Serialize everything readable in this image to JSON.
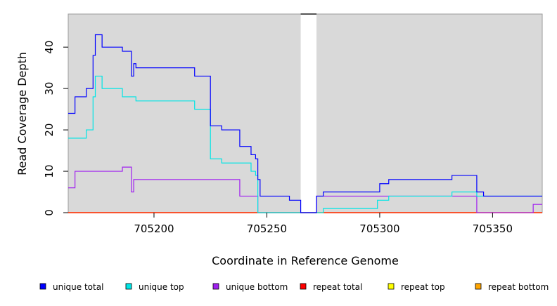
{
  "chart_data": {
    "type": "line",
    "title": "",
    "xlabel": "Coordinate in Reference Genome",
    "ylabel": "Read Coverage Depth",
    "xlim": [
      705162,
      705372
    ],
    "ylim": [
      0,
      48
    ],
    "x_ticks": [
      705200,
      705250,
      705300,
      705350
    ],
    "y_ticks": [
      0,
      10,
      20,
      30,
      40
    ],
    "grid": false,
    "background": "#d9d9d9",
    "gap": {
      "from": 705265,
      "to": 705272,
      "color": "#ffffff"
    },
    "legend_position": "bottom",
    "series": [
      {
        "name": "unique total",
        "color": "#0000ff",
        "points": [
          [
            705162,
            24
          ],
          [
            705165,
            24
          ],
          [
            705165,
            28
          ],
          [
            705170,
            28
          ],
          [
            705170,
            30
          ],
          [
            705173,
            30
          ],
          [
            705173,
            38
          ],
          [
            705174,
            38
          ],
          [
            705174,
            43
          ],
          [
            705177,
            43
          ],
          [
            705177,
            40
          ],
          [
            705186,
            40
          ],
          [
            705186,
            39
          ],
          [
            705190,
            39
          ],
          [
            705190,
            33
          ],
          [
            705191,
            33
          ],
          [
            705191,
            36
          ],
          [
            705192,
            36
          ],
          [
            705192,
            35
          ],
          [
            705218,
            35
          ],
          [
            705218,
            33
          ],
          [
            705225,
            33
          ],
          [
            705225,
            21
          ],
          [
            705230,
            21
          ],
          [
            705230,
            20
          ],
          [
            705238,
            20
          ],
          [
            705238,
            16
          ],
          [
            705243,
            16
          ],
          [
            705243,
            14
          ],
          [
            705245,
            14
          ],
          [
            705245,
            13
          ],
          [
            705246,
            13
          ],
          [
            705246,
            8
          ],
          [
            705247,
            8
          ],
          [
            705247,
            4
          ],
          [
            705260,
            4
          ],
          [
            705260,
            3
          ],
          [
            705265,
            3
          ],
          [
            705265,
            0
          ],
          [
            705272,
            0
          ],
          [
            705272,
            4
          ],
          [
            705275,
            4
          ],
          [
            705275,
            5
          ],
          [
            705300,
            5
          ],
          [
            705300,
            7
          ],
          [
            705304,
            7
          ],
          [
            705304,
            8
          ],
          [
            705332,
            8
          ],
          [
            705332,
            9
          ],
          [
            705343,
            9
          ],
          [
            705343,
            5
          ],
          [
            705346,
            5
          ],
          [
            705346,
            4
          ],
          [
            705372,
            4
          ]
        ]
      },
      {
        "name": "unique top",
        "color": "#00e5e5",
        "points": [
          [
            705162,
            18
          ],
          [
            705170,
            18
          ],
          [
            705170,
            20
          ],
          [
            705173,
            20
          ],
          [
            705173,
            28
          ],
          [
            705174,
            28
          ],
          [
            705174,
            33
          ],
          [
            705177,
            33
          ],
          [
            705177,
            30
          ],
          [
            705186,
            30
          ],
          [
            705186,
            28
          ],
          [
            705192,
            28
          ],
          [
            705192,
            27
          ],
          [
            705218,
            27
          ],
          [
            705218,
            25
          ],
          [
            705225,
            25
          ],
          [
            705225,
            13
          ],
          [
            705230,
            13
          ],
          [
            705230,
            12
          ],
          [
            705243,
            12
          ],
          [
            705243,
            10
          ],
          [
            705245,
            10
          ],
          [
            705245,
            9
          ],
          [
            705246,
            9
          ],
          [
            705246,
            0
          ],
          [
            705275,
            0
          ],
          [
            705275,
            1
          ],
          [
            705299,
            1
          ],
          [
            705299,
            3
          ],
          [
            705304,
            3
          ],
          [
            705304,
            4
          ],
          [
            705332,
            4
          ],
          [
            705332,
            5
          ],
          [
            705343,
            5
          ],
          [
            705343,
            4
          ],
          [
            705372,
            4
          ]
        ]
      },
      {
        "name": "unique bottom",
        "color": "#a020f0",
        "points": [
          [
            705162,
            6
          ],
          [
            705165,
            6
          ],
          [
            705165,
            10
          ],
          [
            705186,
            10
          ],
          [
            705186,
            11
          ],
          [
            705190,
            11
          ],
          [
            705190,
            5
          ],
          [
            705191,
            5
          ],
          [
            705191,
            8
          ],
          [
            705238,
            8
          ],
          [
            705238,
            4
          ],
          [
            705246,
            4
          ],
          [
            705246,
            0
          ],
          [
            705272,
            0
          ],
          [
            705272,
            4
          ],
          [
            705343,
            4
          ],
          [
            705343,
            0
          ],
          [
            705368,
            0
          ],
          [
            705368,
            2
          ],
          [
            705372,
            2
          ]
        ]
      },
      {
        "name": "repeat total",
        "color": "#ff0000",
        "points": [
          [
            705162,
            0
          ],
          [
            705372,
            0
          ]
        ]
      },
      {
        "name": "repeat top",
        "color": "#ffff00",
        "points": [
          [
            705162,
            0
          ],
          [
            705372,
            0
          ]
        ]
      },
      {
        "name": "repeat bottom",
        "color": "#ffa500",
        "points": [
          [
            705162,
            0
          ],
          [
            705372,
            0
          ]
        ]
      }
    ]
  }
}
